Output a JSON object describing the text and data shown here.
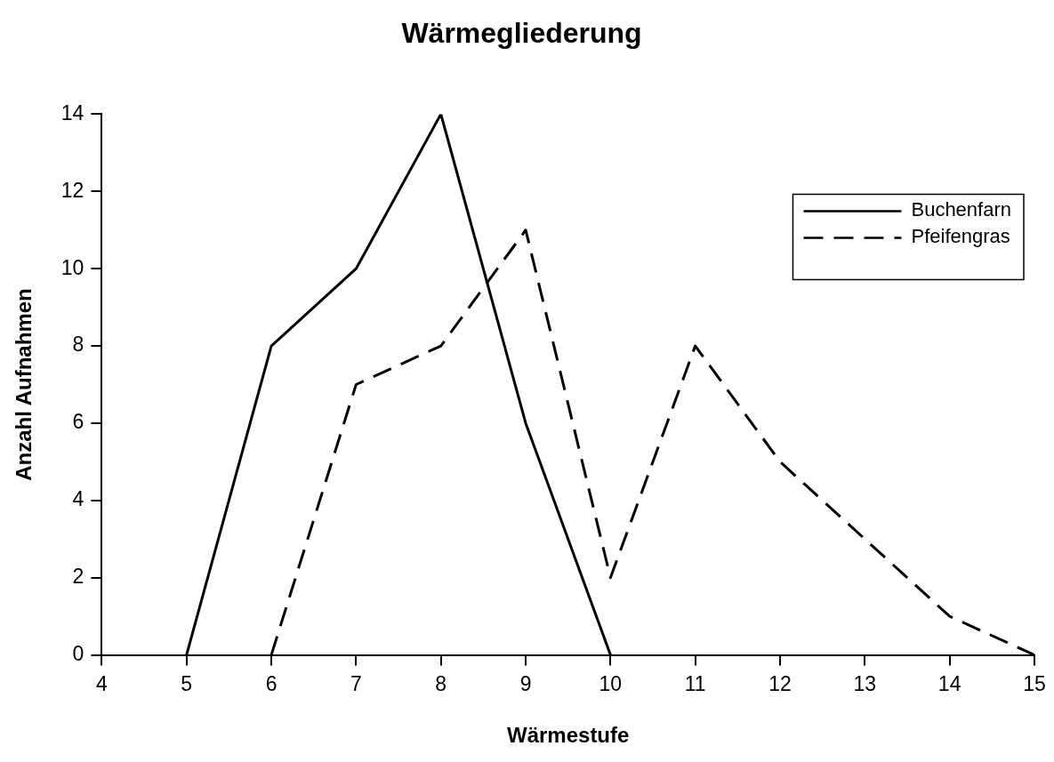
{
  "chart_data": {
    "type": "line",
    "title": "Wärmegliederung",
    "xlabel": "Wärmestufe",
    "ylabel": "Anzahl Aufnahmen",
    "xlim": [
      4,
      15
    ],
    "xticks": [
      4,
      5,
      6,
      7,
      8,
      9,
      10,
      11,
      12,
      13,
      14,
      15
    ],
    "ylim": [
      0,
      14
    ],
    "yticks": [
      0,
      2,
      4,
      6,
      8,
      10,
      12,
      14
    ],
    "grid": false,
    "legend": "top right",
    "marker": "none",
    "series": [
      {
        "name": "Buchenfarn",
        "color": "#000000",
        "line_style": "solid",
        "x": [
          5,
          6,
          7,
          8,
          9,
          10
        ],
        "values": [
          0,
          8,
          10,
          14,
          6,
          0
        ]
      },
      {
        "name": "Pfeifengras",
        "color": "#000000",
        "line_style": "dashed",
        "x": [
          6,
          7,
          8,
          9,
          10,
          11,
          12,
          13,
          14,
          15
        ],
        "values": [
          0,
          7,
          8,
          11,
          2,
          8,
          5,
          3,
          1,
          0
        ]
      }
    ]
  }
}
